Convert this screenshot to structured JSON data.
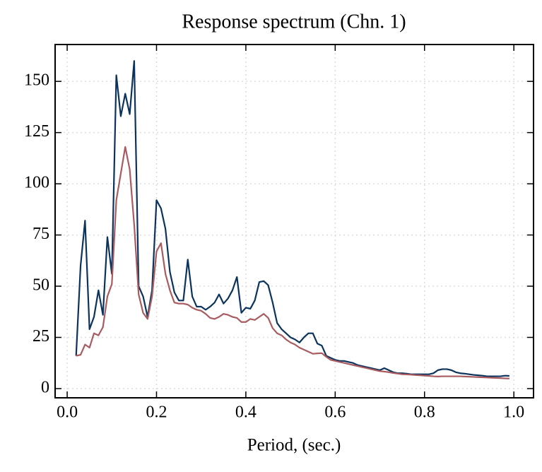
{
  "chart_data": {
    "type": "line",
    "title": "Response spectrum (Chn. 1)",
    "x_label": "Period, (sec.)",
    "x": [
      0.02,
      0.03,
      0.04,
      0.05,
      0.06,
      0.07,
      0.08,
      0.09,
      0.1,
      0.11,
      0.12,
      0.13,
      0.14,
      0.15,
      0.16,
      0.17,
      0.18,
      0.19,
      0.2,
      0.21,
      0.22,
      0.23,
      0.24,
      0.25,
      0.26,
      0.27,
      0.28,
      0.29,
      0.3,
      0.31,
      0.32,
      0.33,
      0.34,
      0.35,
      0.36,
      0.37,
      0.38,
      0.39,
      0.4,
      0.41,
      0.42,
      0.43,
      0.44,
      0.45,
      0.46,
      0.47,
      0.48,
      0.49,
      0.5,
      0.51,
      0.52,
      0.53,
      0.54,
      0.55,
      0.56,
      0.57,
      0.58,
      0.59,
      0.6,
      0.61,
      0.62,
      0.63,
      0.64,
      0.65,
      0.66,
      0.67,
      0.68,
      0.69,
      0.7,
      0.71,
      0.72,
      0.73,
      0.74,
      0.75,
      0.76,
      0.77,
      0.78,
      0.79,
      0.8,
      0.81,
      0.82,
      0.83,
      0.84,
      0.85,
      0.86,
      0.87,
      0.88,
      0.89,
      0.9,
      0.91,
      0.92,
      0.93,
      0.94,
      0.95,
      0.96,
      0.97,
      0.98,
      0.99
    ],
    "series": [
      {
        "color": "#0c335c",
        "values": [
          16,
          60,
          82,
          29,
          35,
          48,
          36,
          74,
          56,
          153,
          133,
          144,
          134,
          160,
          50,
          45,
          35,
          48,
          92,
          88,
          78,
          57,
          47,
          43,
          43,
          63,
          45,
          40,
          40,
          38.5,
          40,
          42,
          46,
          41.5,
          44,
          48,
          54.5,
          37,
          39.5,
          39,
          43,
          52,
          52.5,
          50.5,
          42,
          32,
          29,
          27,
          25,
          24,
          22.5,
          25,
          27,
          27,
          22,
          21,
          16,
          15,
          14,
          13.5,
          13.5,
          13,
          12.5,
          11.5,
          11,
          10.5,
          10,
          9.5,
          9,
          10,
          9,
          8,
          7.5,
          7.5,
          7.3,
          7,
          7,
          7,
          7,
          7,
          7.5,
          9,
          9.5,
          9.5,
          9,
          8,
          7.5,
          7.3,
          7,
          6.7,
          6.5,
          6.3,
          6,
          6,
          6,
          6,
          6.3,
          6.2
        ]
      },
      {
        "color": "#a85c60",
        "values": [
          16,
          16.5,
          21.5,
          20,
          27,
          26,
          30,
          45,
          51,
          92,
          105,
          118,
          107,
          80,
          46,
          37,
          34,
          45,
          67,
          71,
          56,
          48,
          42,
          41.5,
          41.5,
          41,
          39.5,
          38.5,
          38,
          36.5,
          34.5,
          34,
          35,
          36.5,
          36,
          35,
          34.5,
          32.5,
          32.5,
          34,
          33.5,
          35,
          36.5,
          34.5,
          29.5,
          27,
          26,
          24,
          22.5,
          21.5,
          20,
          19,
          18,
          17,
          17.2,
          17.3,
          15.5,
          14,
          13.5,
          13,
          12.5,
          12,
          11.5,
          11,
          10.5,
          10,
          9.5,
          9,
          8.5,
          8.3,
          8,
          7.6,
          7.3,
          7,
          6.9,
          6.8,
          6.6,
          6.5,
          6.3,
          6.2,
          6,
          5.9,
          6,
          6,
          6,
          6,
          6,
          5.9,
          5.8,
          5.7,
          5.6,
          5.5,
          5.4,
          5.3,
          5.2,
          5.1,
          5,
          4.9
        ]
      }
    ],
    "xlim": [
      -0.027,
      1.044
    ],
    "ylim": [
      -4.5,
      168
    ],
    "xticks": [
      {
        "value": 0,
        "label": "0.0"
      },
      0.2,
      0.4,
      0.6,
      0.8,
      {
        "value": 1,
        "label": "1.0"
      }
    ],
    "yticks": [
      0,
      25,
      50,
      75,
      100,
      125,
      150
    ],
    "grid": true
  }
}
